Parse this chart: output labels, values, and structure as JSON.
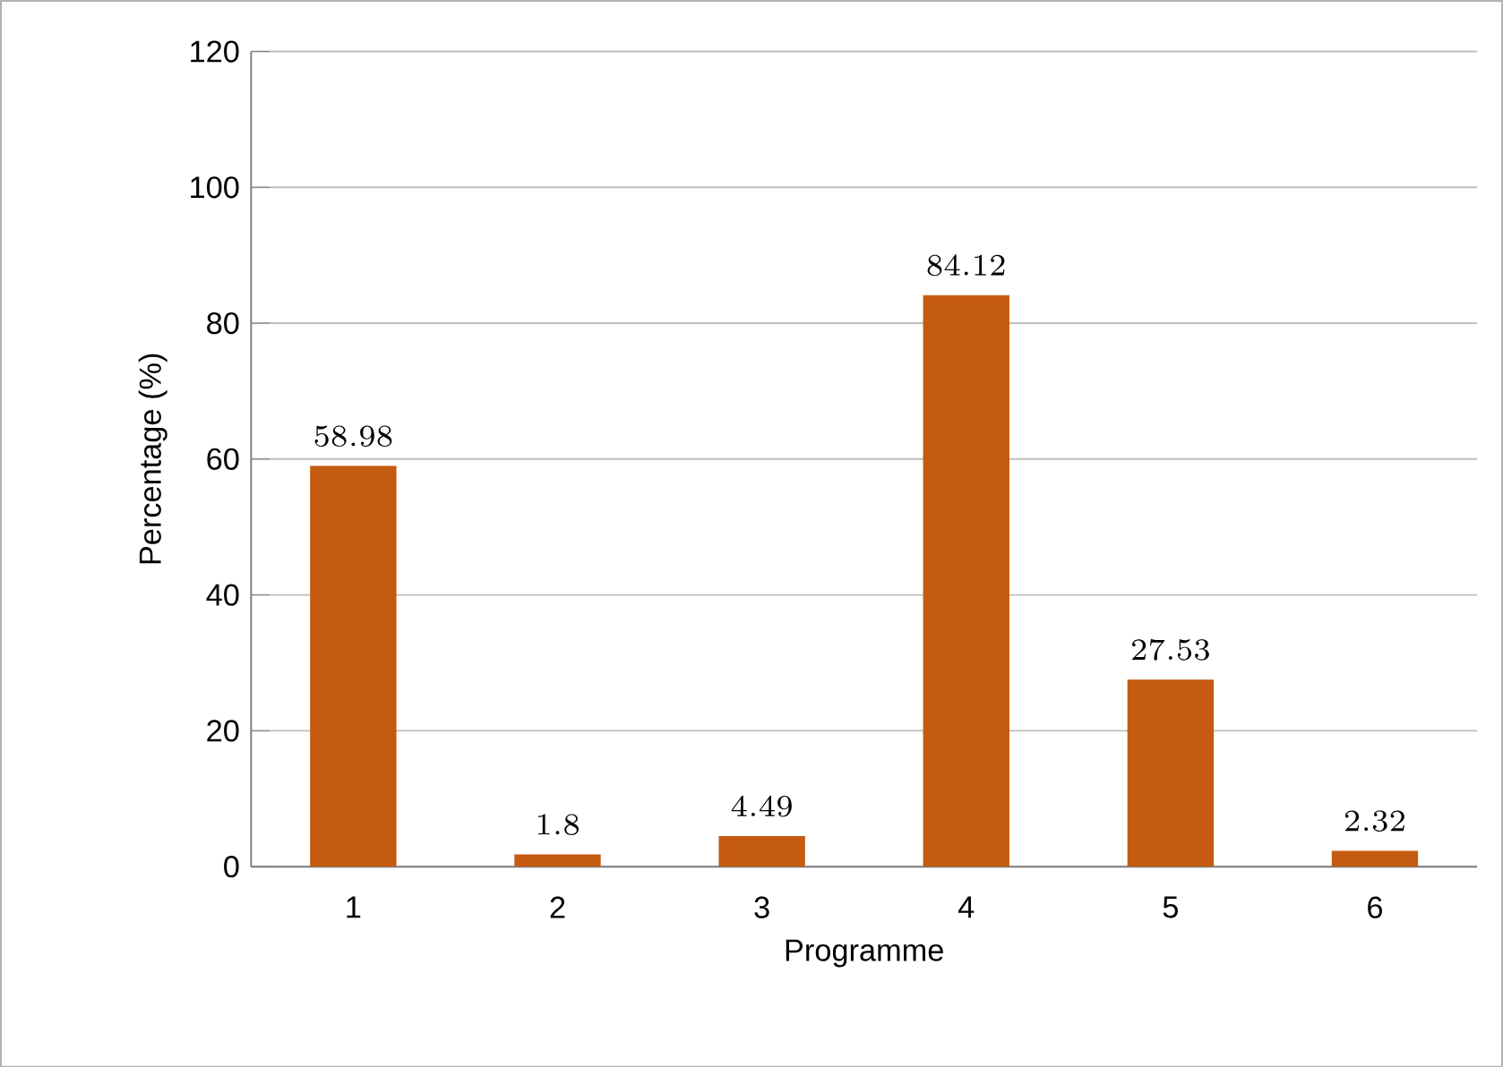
{
  "chart_data": {
    "type": "bar",
    "xlabel": "Programme",
    "ylabel": "Percentage (%)",
    "categories": [
      "1",
      "2",
      "3",
      "4",
      "5",
      "6"
    ],
    "values": [
      58.98,
      1.8,
      4.49,
      84.12,
      27.53,
      2.32
    ],
    "color": "#c55a11",
    "ylim": [
      0,
      120
    ],
    "yticks": [
      0,
      20,
      40,
      60,
      80,
      100,
      120
    ],
    "grid": "y",
    "data_labels": true
  }
}
